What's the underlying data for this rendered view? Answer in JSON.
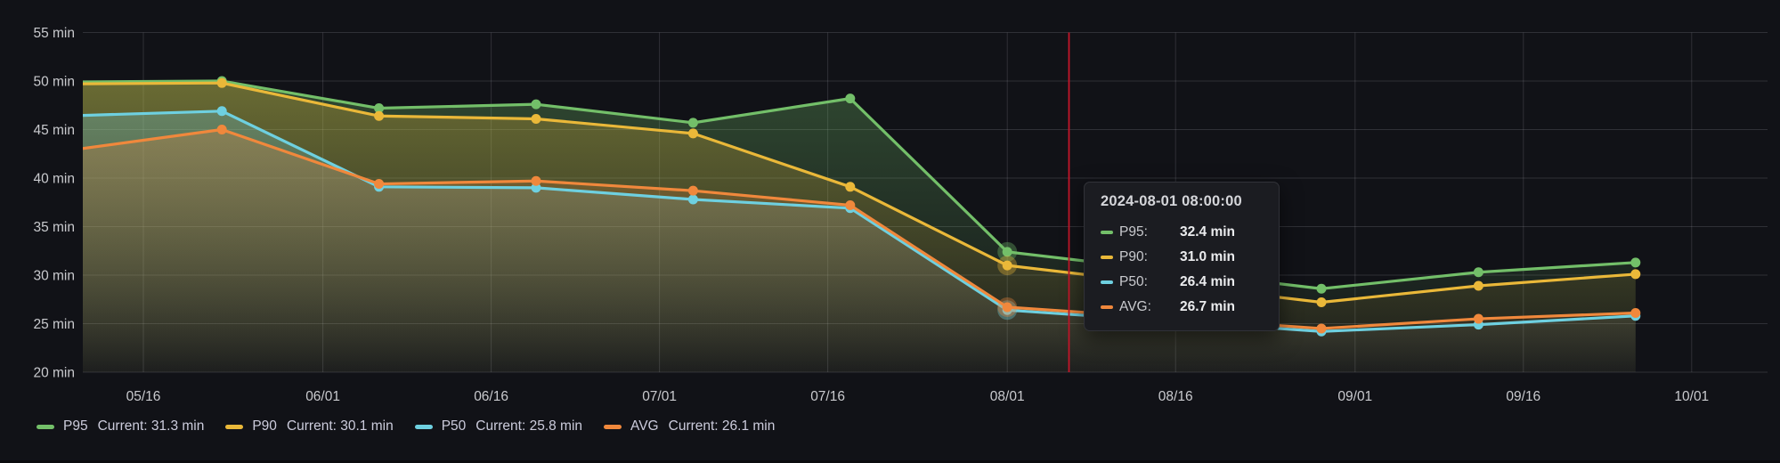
{
  "panel": {
    "background": "#111217",
    "grid_color": "rgba(204,204,220,0.16)",
    "tick_text_color": "#C9CACE"
  },
  "chart_data": {
    "type": "line",
    "x_type": "time",
    "title": "",
    "xlabel": "",
    "ylabel": "",
    "unit": "min",
    "grid": true,
    "legend_position": "bottom-left",
    "ylim": [
      20,
      55
    ],
    "x": [
      "2024-05-09",
      "2024-05-23",
      "2024-06-06",
      "2024-06-20",
      "2024-07-04",
      "2024-07-18",
      "2024-08-01",
      "2024-08-29",
      "2024-09-12",
      "2024-09-26"
    ],
    "series": [
      {
        "name": "P95",
        "color": "#73BF69",
        "values": [
          49.9,
          50.0,
          47.2,
          47.6,
          45.7,
          48.2,
          32.4,
          28.6,
          30.3,
          31.3
        ]
      },
      {
        "name": "P90",
        "color": "#EAB839",
        "values": [
          49.7,
          49.8,
          46.4,
          46.1,
          44.6,
          39.1,
          31.0,
          27.2,
          28.9,
          30.1
        ]
      },
      {
        "name": "P50",
        "color": "#6ED0E0",
        "values": [
          46.4,
          46.9,
          39.1,
          39.0,
          37.8,
          36.9,
          26.4,
          24.2,
          24.9,
          25.8
        ]
      },
      {
        "name": "AVG",
        "color": "#F0883C",
        "values": [
          42.8,
          45.0,
          39.4,
          39.7,
          38.7,
          37.2,
          26.7,
          24.5,
          25.5,
          26.1
        ]
      }
    ],
    "y_ticks": [
      {
        "value": 20,
        "label": "20 min"
      },
      {
        "value": 25,
        "label": "25 min"
      },
      {
        "value": 30,
        "label": "30 min"
      },
      {
        "value": 35,
        "label": "35 min"
      },
      {
        "value": 40,
        "label": "40 min"
      },
      {
        "value": 45,
        "label": "45 min"
      },
      {
        "value": 50,
        "label": "50 min"
      },
      {
        "value": 55,
        "label": "55 min"
      }
    ],
    "x_ticks": [
      {
        "date": "2024-05-16",
        "label": "05/16"
      },
      {
        "date": "2024-06-01",
        "label": "06/01"
      },
      {
        "date": "2024-06-16",
        "label": "06/16"
      },
      {
        "date": "2024-07-01",
        "label": "07/01"
      },
      {
        "date": "2024-07-16",
        "label": "07/16"
      },
      {
        "date": "2024-08-01",
        "label": "08/01"
      },
      {
        "date": "2024-08-16",
        "label": "08/16"
      },
      {
        "date": "2024-09-01",
        "label": "09/01"
      },
      {
        "date": "2024-09-16",
        "label": "09/16"
      },
      {
        "date": "2024-10-01",
        "label": "10/01"
      }
    ],
    "hover_index": 6,
    "cursor": {
      "time": "2024-08-06T12:00:00Z",
      "color": "#C4162A"
    }
  },
  "tooltip": {
    "title": "2024-08-01 08:00:00",
    "rows": [
      {
        "label": "P95:",
        "value": "32.4 min",
        "color": "#73BF69"
      },
      {
        "label": "P90:",
        "value": "31.0 min",
        "color": "#EAB839"
      },
      {
        "label": "P50:",
        "value": "26.4 min",
        "color": "#6ED0E0"
      },
      {
        "label": "AVG:",
        "value": "26.7 min",
        "color": "#F0883C"
      }
    ]
  },
  "legend": {
    "items": [
      {
        "label": "P95",
        "current": "Current: 31.3 min",
        "color": "#73BF69"
      },
      {
        "label": "P90",
        "current": "Current: 30.1 min",
        "color": "#EAB839"
      },
      {
        "label": "P50",
        "current": "Current: 25.8 min",
        "color": "#6ED0E0"
      },
      {
        "label": "AVG",
        "current": "Current: 26.1 min",
        "color": "#F0883C"
      }
    ]
  }
}
